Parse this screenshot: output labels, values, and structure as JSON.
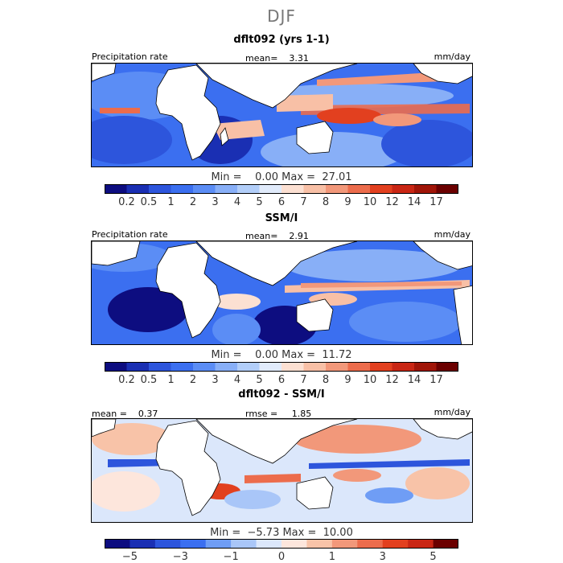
{
  "season": "DJF",
  "panels": [
    {
      "title": "dflt092 (yrs 1-1)",
      "left_label": "Precipitation rate",
      "stat": "mean=    3.31",
      "units": "mm/day",
      "minmax": "Min =    0.00 Max =  27.01",
      "colorbar": {
        "colors": [
          "#0d0d80",
          "#1a2fb3",
          "#2d55dc",
          "#3b6ff0",
          "#5b8df5",
          "#88aff7",
          "#b2cef9",
          "#e1ebfb",
          "#fce0d2",
          "#f8c0a6",
          "#f2987a",
          "#ec6c4c",
          "#e2401f",
          "#c92614",
          "#a01508",
          "#6b0000"
        ],
        "tick_labels": [
          "0.2",
          "0.5",
          "1",
          "2",
          "3",
          "4",
          "5",
          "6",
          "7",
          "8",
          "9",
          "10",
          "12",
          "14",
          "17"
        ]
      }
    },
    {
      "title": "SSM/I",
      "left_label": "Precipitation rate",
      "stat": "mean=    2.91",
      "units": "mm/day",
      "minmax": "Min =    0.00 Max =  11.72",
      "colorbar": {
        "colors": [
          "#0d0d80",
          "#1a2fb3",
          "#2d55dc",
          "#3b6ff0",
          "#5b8df5",
          "#88aff7",
          "#b2cef9",
          "#e1ebfb",
          "#fce0d2",
          "#f8c0a6",
          "#f2987a",
          "#ec6c4c",
          "#e2401f",
          "#c92614",
          "#a01508",
          "#6b0000"
        ],
        "tick_labels": [
          "0.2",
          "0.5",
          "1",
          "2",
          "3",
          "4",
          "5",
          "6",
          "7",
          "8",
          "9",
          "10",
          "12",
          "14",
          "17"
        ]
      }
    },
    {
      "title": "dflt092 - SSM/I",
      "left_label": "mean =    0.37",
      "stat": "rmse =     1.85",
      "units": "mm/day",
      "minmax": "Min =  −5.73 Max =  10.00",
      "colorbar": {
        "colors": [
          "#0d0d80",
          "#1a2fb3",
          "#2d55dc",
          "#3b6ff0",
          "#6f9df5",
          "#a9c6f8",
          "#dbe7fb",
          "#fde6dc",
          "#f8c3a8",
          "#f2987a",
          "#ec6c4c",
          "#e2401f",
          "#c92614",
          "#6b0000"
        ],
        "tick_labels": [
          "−5",
          "",
          "−3",
          "",
          "−1",
          "",
          "0",
          "",
          "1",
          "",
          "3",
          "",
          "5"
        ]
      }
    }
  ]
}
